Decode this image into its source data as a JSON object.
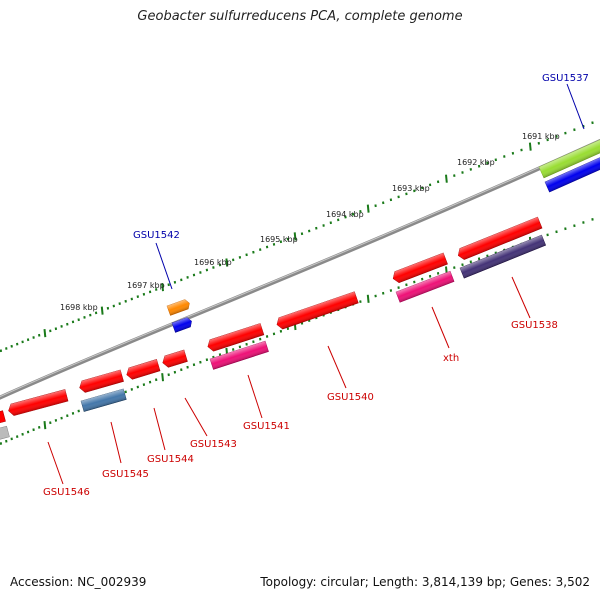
{
  "title": "Geobacter sulfurreducens PCA, complete genome",
  "footer": {
    "accession": "Accession: NC_002939",
    "summary": "Topology: circular; Length: 3,814,139 bp; Genes: 3,502"
  },
  "colors": {
    "backbone": "#8a8a8a",
    "tick": "#1a7a1a",
    "label_red": "#cc0000",
    "label_blue": "#0000aa"
  },
  "ticks": [
    {
      "text": "1691 kbp"
    },
    {
      "text": "1692 kbp"
    },
    {
      "text": "1693 kbp"
    },
    {
      "text": "1694 kbp"
    },
    {
      "text": "1695 kbp"
    },
    {
      "text": "1696 kbp"
    },
    {
      "text": "1697 kbp"
    },
    {
      "text": "1698 kbp"
    }
  ],
  "genes": [
    {
      "id": "GSU1537",
      "strand": "+",
      "color": "#99dd33"
    },
    {
      "id": "GSU1537b",
      "strand": "+",
      "color": "#0000ee"
    },
    {
      "id": "GSU1538",
      "strand": "-",
      "color": "#ff0000"
    },
    {
      "id": "GSU1538b",
      "strand": "-",
      "color": "#443377"
    },
    {
      "id": "xth",
      "strand": "-",
      "color": "#ff0000"
    },
    {
      "id": "xthb",
      "strand": "-",
      "color": "#ee1177"
    },
    {
      "id": "GSU1540",
      "strand": "-",
      "color": "#ff0000"
    },
    {
      "id": "GSU1541",
      "strand": "-",
      "color": "#ff0000"
    },
    {
      "id": "GSU1541b",
      "strand": "-",
      "color": "#ee1177"
    },
    {
      "id": "GSU1542",
      "strand": "+",
      "color": "#ff8800"
    },
    {
      "id": "GSU1542b",
      "strand": "+",
      "color": "#0000ee"
    },
    {
      "id": "GSU1543",
      "strand": "-",
      "color": "#ff0000"
    },
    {
      "id": "GSU1544",
      "strand": "-",
      "color": "#ff0000"
    },
    {
      "id": "GSU1545",
      "strand": "-",
      "color": "#ff0000"
    },
    {
      "id": "GSU1545b",
      "strand": "-",
      "color": "#4477aa"
    },
    {
      "id": "GSU1546",
      "strand": "-",
      "color": "#ff0000"
    },
    {
      "id": "GSU1547",
      "strand": "-",
      "color": "#ff0000"
    },
    {
      "id": "GSU1547b",
      "strand": "-",
      "color": "#bbbbbb"
    }
  ],
  "labels": [
    {
      "text": "GSU1537",
      "color": "#0000aa"
    },
    {
      "text": "GSU1538",
      "color": "#cc0000"
    },
    {
      "text": "xth",
      "color": "#cc0000"
    },
    {
      "text": "GSU1540",
      "color": "#cc0000"
    },
    {
      "text": "GSU1541",
      "color": "#cc0000"
    },
    {
      "text": "GSU1542",
      "color": "#0000aa"
    },
    {
      "text": "GSU1543",
      "color": "#cc0000"
    },
    {
      "text": "GSU1544",
      "color": "#cc0000"
    },
    {
      "text": "GSU1545",
      "color": "#cc0000"
    },
    {
      "text": "GSU1546",
      "color": "#cc0000"
    }
  ]
}
